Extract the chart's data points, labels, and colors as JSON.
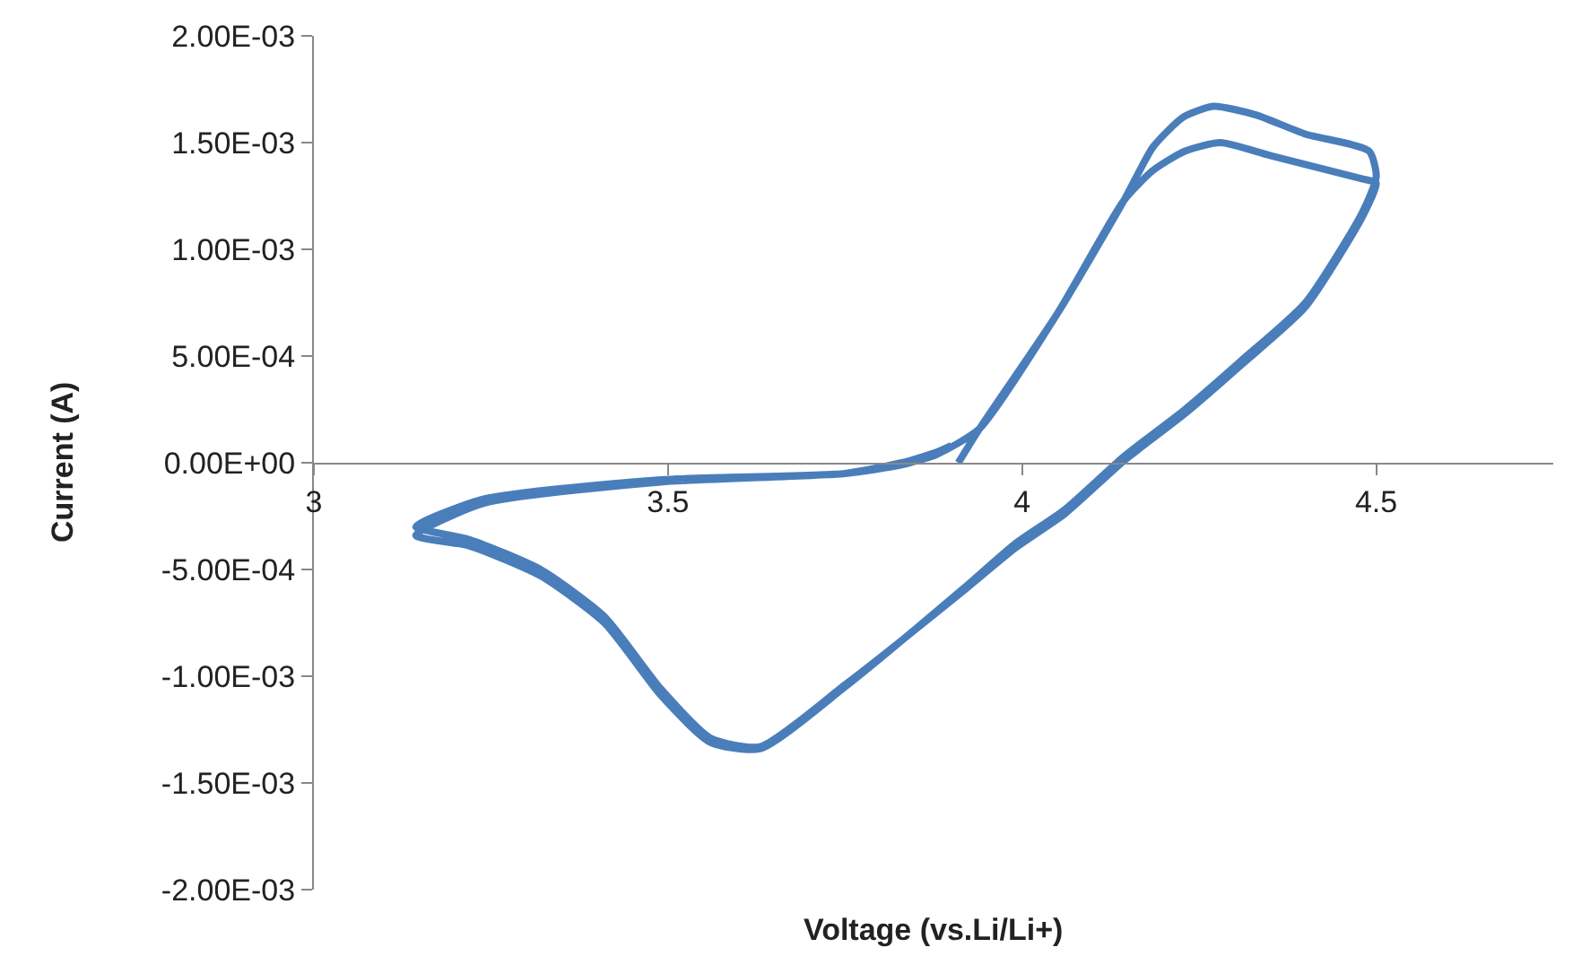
{
  "chart_data": {
    "type": "line",
    "xlabel": "Voltage (vs.Li/Li+)",
    "ylabel": "Current (A)",
    "xlim": [
      3,
      4.75
    ],
    "xticks": [
      3,
      3.5,
      4,
      4.5
    ],
    "ylim": [
      -0.002,
      0.002
    ],
    "yticks": [
      {
        "value": -0.002,
        "label": "-2.00E-03"
      },
      {
        "value": -0.0015,
        "label": "-1.50E-03"
      },
      {
        "value": -0.001,
        "label": "-1.00E-03"
      },
      {
        "value": -0.0005,
        "label": "-5.00E-04"
      },
      {
        "value": 0,
        "label": "0.00E+00"
      },
      {
        "value": 0.0005,
        "label": "5.00E-04"
      },
      {
        "value": 0.001,
        "label": "1.00E-03"
      },
      {
        "value": 0.0015,
        "label": "1.50E-03"
      },
      {
        "value": 0.002,
        "label": "2.00E-03"
      }
    ],
    "marker": "none",
    "line_style": "solid",
    "series": [
      {
        "color": "#4a7ebb",
        "x": [
          3.91,
          3.94,
          4.05,
          4.144,
          4.185,
          4.228,
          4.27,
          4.33,
          4.4,
          4.49,
          4.5,
          4.48,
          4.4,
          4.31,
          4.23,
          4.144,
          4.06,
          3.99,
          3.917,
          3.75,
          3.63,
          3.56,
          3.49,
          3.41,
          3.32,
          3.22,
          3.144,
          3.24,
          3.49,
          3.75,
          3.83,
          3.88,
          3.94,
          4.05,
          4.144,
          4.185,
          4.23,
          4.28,
          4.35,
          4.48,
          4.5,
          4.48,
          4.4,
          4.31,
          4.23,
          4.144,
          4.06,
          3.99,
          3.917,
          3.75,
          3.63,
          3.56,
          3.49,
          3.41,
          3.32,
          3.22,
          3.144,
          3.24,
          3.49,
          3.75,
          3.83,
          3.88,
          3.9
        ],
        "values": [
          0,
          0.00016,
          0.0007,
          0.00123,
          0.00148,
          0.00162,
          0.00167,
          0.00163,
          0.00154,
          0.00146,
          0.00134,
          0.00117,
          0.00075,
          0.00048,
          0.00025,
          3e-05,
          -0.00022,
          -0.00038,
          -0.00059,
          -0.00105,
          -0.00134,
          -0.00131,
          -0.00109,
          -0.00075,
          -0.00053,
          -0.00039,
          -0.00034,
          -0.00019,
          -9e-05,
          -5e-05,
          -1e-05,
          4e-05,
          0.00016,
          0.0007,
          0.00123,
          0.00137,
          0.00146,
          0.0015,
          0.00144,
          0.00133,
          0.00131,
          0.00115,
          0.00073,
          0.00046,
          0.00023,
          1e-05,
          -0.00024,
          -0.0004,
          -0.0006,
          -0.00104,
          -0.00133,
          -0.00129,
          -0.00106,
          -0.00072,
          -0.0005,
          -0.00036,
          -0.0003,
          -0.00017,
          -8e-05,
          -5e-05,
          0,
          5e-05,
          8e-05
        ]
      }
    ]
  }
}
